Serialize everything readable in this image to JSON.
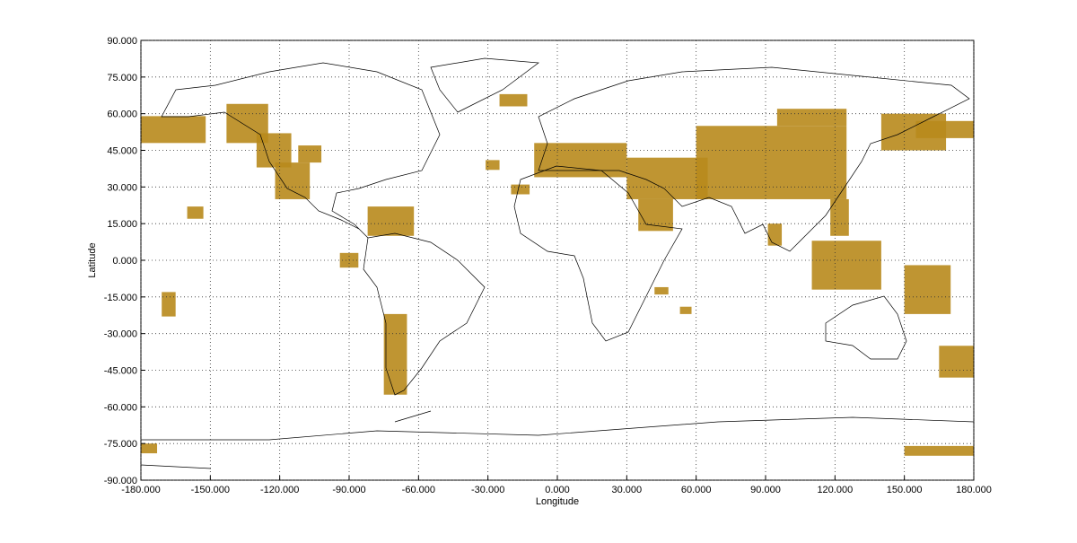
{
  "chart_data": {
    "type": "map",
    "x_label": "Longitude",
    "y_label": "Latitude",
    "xlim": [
      -180,
      180
    ],
    "ylim": [
      -90,
      90
    ],
    "xticks": [
      {
        "value": -180,
        "label": "-180.000"
      },
      {
        "value": -150,
        "label": "-150.000"
      },
      {
        "value": -120,
        "label": "-120.000"
      },
      {
        "value": -90,
        "label": "-90.000"
      },
      {
        "value": -60,
        "label": "-60.000"
      },
      {
        "value": -30,
        "label": "-30.000"
      },
      {
        "value": 0,
        "label": "0.000"
      },
      {
        "value": 30,
        "label": "30.000"
      },
      {
        "value": 60,
        "label": "60.000"
      },
      {
        "value": 90,
        "label": "90.000"
      },
      {
        "value": 120,
        "label": "120.000"
      },
      {
        "value": 150,
        "label": "150.000"
      },
      {
        "value": 180,
        "label": "180.000"
      }
    ],
    "yticks": [
      {
        "value": -90,
        "label": "-90.000"
      },
      {
        "value": -75,
        "label": "-75.000"
      },
      {
        "value": -60,
        "label": "-60.000"
      },
      {
        "value": -45,
        "label": "-45.000"
      },
      {
        "value": -30,
        "label": "-30.000"
      },
      {
        "value": -15,
        "label": "-15.000"
      },
      {
        "value": 0,
        "label": "0.000"
      },
      {
        "value": 15,
        "label": "15.000"
      },
      {
        "value": 30,
        "label": "30.000"
      },
      {
        "value": 45,
        "label": "45.000"
      },
      {
        "value": 60,
        "label": "60.000"
      },
      {
        "value": 75,
        "label": "75.000"
      },
      {
        "value": 90,
        "label": "90.000"
      }
    ],
    "grid": true,
    "color": "#b8891c",
    "regions": [
      {
        "lon": [
          -180,
          -152
        ],
        "lat": [
          48,
          59
        ]
      },
      {
        "lon": [
          -143,
          -125
        ],
        "lat": [
          48,
          64
        ]
      },
      {
        "lon": [
          -130,
          -115
        ],
        "lat": [
          38,
          52
        ]
      },
      {
        "lon": [
          -122,
          -107
        ],
        "lat": [
          25,
          40
        ]
      },
      {
        "lon": [
          -112,
          -102
        ],
        "lat": [
          40,
          47
        ]
      },
      {
        "lon": [
          -160,
          -153
        ],
        "lat": [
          17,
          22
        ]
      },
      {
        "lon": [
          -82,
          -62
        ],
        "lat": [
          10,
          22
        ]
      },
      {
        "lon": [
          -94,
          -86
        ],
        "lat": [
          -3,
          3
        ]
      },
      {
        "lon": [
          -75,
          -65
        ],
        "lat": [
          -55,
          -22
        ]
      },
      {
        "lon": [
          -171,
          -165
        ],
        "lat": [
          -23,
          -13
        ]
      },
      {
        "lon": [
          -180,
          -173
        ],
        "lat": [
          -79,
          -75
        ]
      },
      {
        "lon": [
          -25,
          -13
        ],
        "lat": [
          63,
          68
        ]
      },
      {
        "lon": [
          -31,
          -25
        ],
        "lat": [
          37,
          41
        ]
      },
      {
        "lon": [
          -20,
          -12
        ],
        "lat": [
          27,
          31
        ]
      },
      {
        "lon": [
          -10,
          30
        ],
        "lat": [
          34,
          48
        ]
      },
      {
        "lon": [
          30,
          65
        ],
        "lat": [
          25,
          42
        ]
      },
      {
        "lon": [
          35,
          50
        ],
        "lat": [
          12,
          25
        ]
      },
      {
        "lon": [
          60,
          125
        ],
        "lat": [
          25,
          55
        ]
      },
      {
        "lon": [
          95,
          125
        ],
        "lat": [
          55,
          62
        ]
      },
      {
        "lon": [
          140,
          168
        ],
        "lat": [
          45,
          60
        ]
      },
      {
        "lon": [
          155,
          180
        ],
        "lat": [
          50,
          57
        ]
      },
      {
        "lon": [
          118,
          126
        ],
        "lat": [
          10,
          25
        ]
      },
      {
        "lon": [
          91,
          97
        ],
        "lat": [
          6,
          15
        ]
      },
      {
        "lon": [
          110,
          140
        ],
        "lat": [
          -12,
          8
        ]
      },
      {
        "lon": [
          150,
          170
        ],
        "lat": [
          -22,
          -2
        ]
      },
      {
        "lon": [
          165,
          180
        ],
        "lat": [
          -48,
          -35
        ]
      },
      {
        "lon": [
          42,
          48
        ],
        "lat": [
          -14,
          -11
        ]
      },
      {
        "lon": [
          53,
          58
        ],
        "lat": [
          -22,
          -19
        ]
      },
      {
        "lon": [
          150,
          180
        ],
        "lat": [
          -80,
          -76
        ]
      }
    ]
  }
}
